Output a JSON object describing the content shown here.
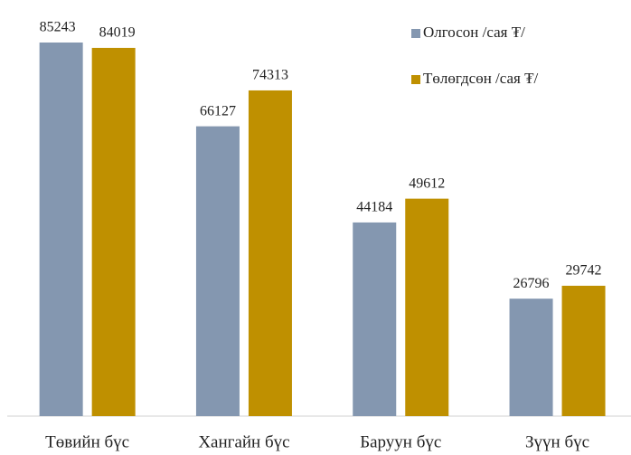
{
  "chart_data": {
    "type": "bar",
    "categories": [
      "Төвийн бүс",
      "Хангайн бүс",
      "Баруун бүс",
      "Зүүн бүс"
    ],
    "series": [
      {
        "name": "Олгосон /сая ₮/",
        "color": "#8497b0",
        "values": [
          85243,
          66127,
          44184,
          26796
        ]
      },
      {
        "name": "Төлөгдсөн /сая ₮/",
        "color": "#bf9000",
        "values": [
          84019,
          74313,
          49612,
          29742
        ]
      }
    ],
    "legend": "top-right"
  }
}
